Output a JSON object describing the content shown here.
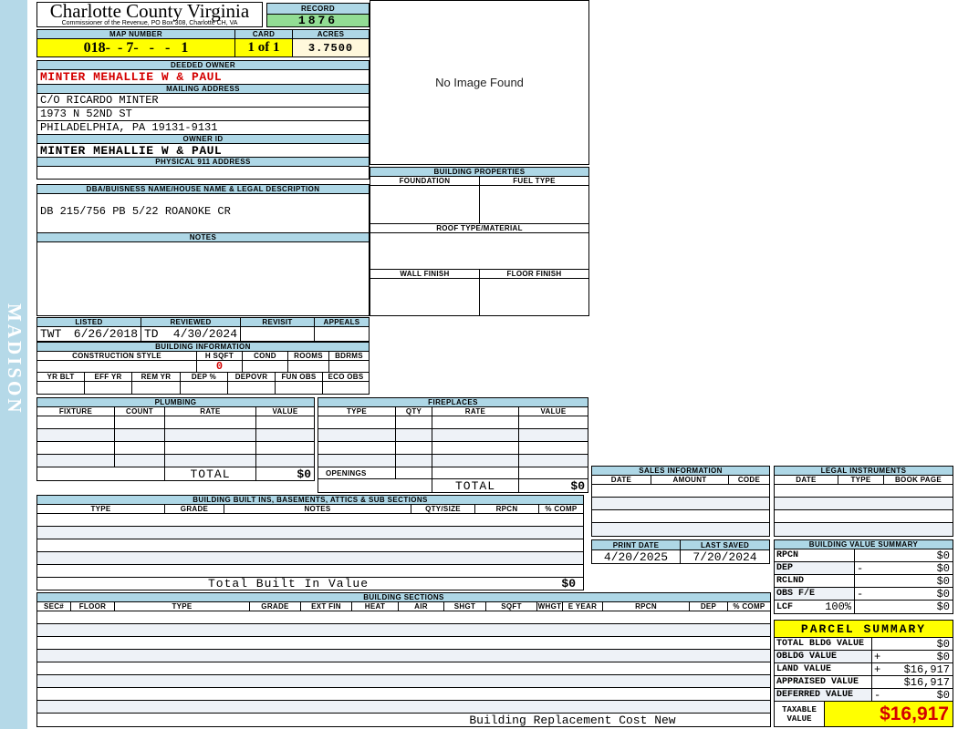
{
  "colors": {
    "panel_blue": "#aed7e6",
    "sidebar_blue": "#b5d9e8",
    "highlight_yellow": "#ffff00",
    "record_green": "#92dd94",
    "acres_cream": "#fff8dc",
    "alert_red": "#d40000"
  },
  "sidebar": {
    "watermark": "MADISON"
  },
  "header": {
    "county_name": "Charlotte County Virginia",
    "office_line": "Commissioner of the Revenue, PO Box 308, Charlotte CH, VA",
    "record_label": "RECORD",
    "record_number": "1876",
    "map_number_label": "MAP NUMBER",
    "map_number": "018-  - 7-   -   -   1",
    "card_label": "CARD",
    "card": "1 of 1",
    "acres_label": "ACRES",
    "acres": "3.7500"
  },
  "owner": {
    "deeded_owner_label": "DEEDED OWNER",
    "deeded_owner": "MINTER MEHALLIE W & PAUL",
    "mailing_address_label": "MAILING ADDRESS",
    "mailing_line1": "C/O RICARDO MINTER",
    "mailing_line2": "1973 N 52ND ST",
    "mailing_line3": "PHILADELPHIA, PA 19131-9131",
    "owner_id_label": "OWNER ID",
    "owner_id": "MINTER MEHALLIE W & PAUL",
    "physical_address_label": "PHYSICAL 911 ADDRESS",
    "physical_address": ""
  },
  "legal_description": {
    "label": "DBA/BUISNESS NAME/HOUSE NAME & LEGAL DESCRIPTION",
    "value": "DB 215/756 PB 5/22 ROANOKE CR",
    "notes_label": "NOTES",
    "notes": ""
  },
  "review": {
    "listed_label": "LISTED",
    "reviewed_label": "REVIEWED",
    "revisit_label": "REVISIT",
    "appeals_label": "APPEALS",
    "listed_by": "TWT",
    "listed_date": "6/26/2018",
    "reviewed_by": "TD",
    "reviewed_date": "4/30/2024",
    "revisit": "",
    "appeals": ""
  },
  "building_information": {
    "title": "BUILDING INFORMATION",
    "construction_style_label": "CONSTRUCTION STYLE",
    "hsqft_label": "H SQFT",
    "hsqft": "0",
    "cond_label": "COND",
    "rooms_label": "ROOMS",
    "bdrms_label": "BDRMS",
    "yr_blt_label": "YR BLT",
    "eff_yr_label": "EFF YR",
    "rem_yr_label": "REM YR",
    "dep_pct_label": "DEP %",
    "depovr_label": "DEPOVR",
    "fun_obs_label": "FUN OBS",
    "eco_obs_label": "ECO OBS"
  },
  "plumbing": {
    "title": "PLUMBING",
    "cols": [
      "FIXTURE",
      "COUNT",
      "RATE",
      "VALUE"
    ],
    "total_label": "TOTAL",
    "total_value": "$0"
  },
  "fireplaces": {
    "title": "FIREPLACES",
    "cols": [
      "TYPE",
      "QTY",
      "RATE",
      "VALUE"
    ],
    "openings_label": "OPENINGS",
    "total_label": "TOTAL",
    "total_value": "$0"
  },
  "built_ins": {
    "title": "BUILDING BUILT INS, BASEMENTS, ATTICS & SUB SECTIONS",
    "cols": [
      "TYPE",
      "GRADE",
      "NOTES",
      "QTY/SIZE",
      "RPCN",
      "% COMP"
    ],
    "total_label": "Total Built In Value",
    "total_value": "$0"
  },
  "building_sections": {
    "title": "BUILDING SECTIONS",
    "cols": [
      "SEC#",
      "FLOOR",
      "TYPE",
      "GRADE",
      "EXT FIN",
      "HEAT",
      "AIR",
      "SHGT",
      "SQFT",
      "WHGT",
      "E YEAR",
      "RPCN",
      "DEP",
      "% COMP"
    ],
    "footer": "Building Replacement Cost New"
  },
  "image_panel": {
    "no_image_text": "No Image Found"
  },
  "building_properties": {
    "title": "BUILDING PROPERTIES",
    "foundation_label": "FOUNDATION",
    "fuel_type_label": "FUEL TYPE",
    "roof_label": "ROOF TYPE/MATERIAL",
    "wall_finish_label": "WALL FINISH",
    "floor_finish_label": "FLOOR FINISH"
  },
  "sales_information": {
    "title": "SALES INFORMATION",
    "cols": [
      "DATE",
      "AMOUNT",
      "CODE"
    ]
  },
  "legal_instruments": {
    "title": "LEGAL INSTRUMENTS",
    "cols": [
      "DATE",
      "TYPE",
      "BOOK PAGE"
    ]
  },
  "dates": {
    "print_date_label": "PRINT DATE",
    "print_date": "4/20/2025",
    "last_saved_label": "LAST SAVED",
    "last_saved": "7/20/2024"
  },
  "building_value_summary": {
    "title": "BUILDING VALUE SUMMARY",
    "rows": [
      {
        "label": "RPCN",
        "pct": "",
        "op": "",
        "value": "$0"
      },
      {
        "label": "DEP",
        "pct": "",
        "op": "-",
        "value": "$0"
      },
      {
        "label": "RCLND",
        "pct": "",
        "op": "",
        "value": "$0"
      },
      {
        "label": "OBS F/E",
        "pct": "",
        "op": "-",
        "value": "$0"
      },
      {
        "label": "LCF",
        "pct": "100%",
        "op": "",
        "value": "$0"
      }
    ]
  },
  "parcel_summary": {
    "title": "PARCEL SUMMARY",
    "rows": [
      {
        "label": "TOTAL BLDG VALUE",
        "op": "",
        "value": "$0"
      },
      {
        "label": "OBLDG VALUE",
        "op": "+",
        "value": "$0"
      },
      {
        "label": "LAND VALUE",
        "op": "+",
        "value": "$16,917"
      },
      {
        "label": "APPRAISED VALUE",
        "op": "",
        "value": "$16,917"
      },
      {
        "label": "DEFERRED VALUE",
        "op": "-",
        "value": "$0"
      }
    ],
    "taxable_label": "TAXABLE VALUE",
    "taxable_value": "$16,917"
  }
}
